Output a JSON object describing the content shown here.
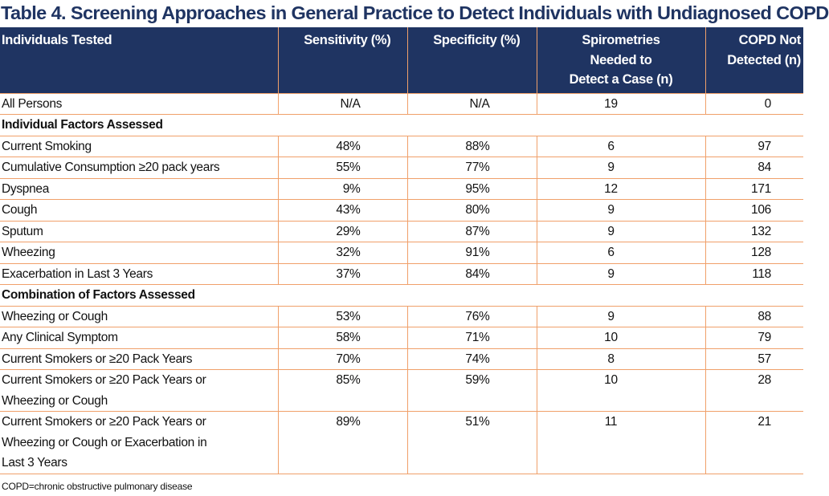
{
  "title": "Table 4. Screening Approaches in General Practice to Detect Individuals with Undiagnosed COPD",
  "headers": {
    "col1": "Individuals Tested",
    "col2": "Sensitivity (%)",
    "col3": "Specificity (%)",
    "col4_line1": "Spirometries",
    "col4_line2": "Needed to",
    "col4_line3": "Detect a Case (n)",
    "col5_line1": "COPD Not",
    "col5_line2": "Detected (n)"
  },
  "rows": [
    {
      "label": "All Persons",
      "sensitivity": "N/A",
      "specificity": "N/A",
      "spirometries": "19",
      "not_detected": "0"
    },
    {
      "section": "Individual Factors Assessed"
    },
    {
      "label": "Current Smoking",
      "sensitivity": "48%",
      "specificity": "88%",
      "spirometries": "6",
      "not_detected": "97"
    },
    {
      "label": "Cumulative Consumption ≥20 pack years",
      "sensitivity": "55%",
      "specificity": "77%",
      "spirometries": "9",
      "not_detected": "84"
    },
    {
      "label": "Dyspnea",
      "sensitivity": "9%",
      "specificity": "95%",
      "spirometries": "12",
      "not_detected": "171"
    },
    {
      "label": "Cough",
      "sensitivity": "43%",
      "specificity": "80%",
      "spirometries": "9",
      "not_detected": "106"
    },
    {
      "label": "Sputum",
      "sensitivity": "29%",
      "specificity": "87%",
      "spirometries": "9",
      "not_detected": "132"
    },
    {
      "label": "Wheezing",
      "sensitivity": "32%",
      "specificity": "91%",
      "spirometries": "6",
      "not_detected": "128"
    },
    {
      "label": "Exacerbation in Last 3 Years",
      "sensitivity": "37%",
      "specificity": "84%",
      "spirometries": "9",
      "not_detected": "118"
    },
    {
      "section": "Combination of Factors Assessed"
    },
    {
      "label": "Wheezing or Cough",
      "sensitivity": "53%",
      "specificity": "76%",
      "spirometries": "9",
      "not_detected": "88"
    },
    {
      "label": "Any Clinical Symptom",
      "sensitivity": "58%",
      "specificity": "71%",
      "spirometries": "10",
      "not_detected": "79"
    },
    {
      "label": "Current Smokers or ≥20 Pack Years",
      "sensitivity": "70%",
      "specificity": "74%",
      "spirometries": "8",
      "not_detected": "57"
    },
    {
      "label_lines": [
        "Current Smokers or ≥20 Pack Years or",
        "Wheezing or Cough"
      ],
      "sensitivity": "85%",
      "specificity": "59%",
      "spirometries": "10",
      "not_detected": "28"
    },
    {
      "label_lines": [
        "Current Smokers or ≥20 Pack Years or",
        "Wheezing or Cough or Exacerbation in",
        "Last 3 Years"
      ],
      "sensitivity": "89%",
      "specificity": "51%",
      "spirometries": "11",
      "not_detected": "21"
    }
  ],
  "footnote": "COPD=chronic obstructive pulmonary disease",
  "colors": {
    "header_bg": "#1f3462",
    "border": "#f0a06a",
    "title": "#1f3462"
  }
}
